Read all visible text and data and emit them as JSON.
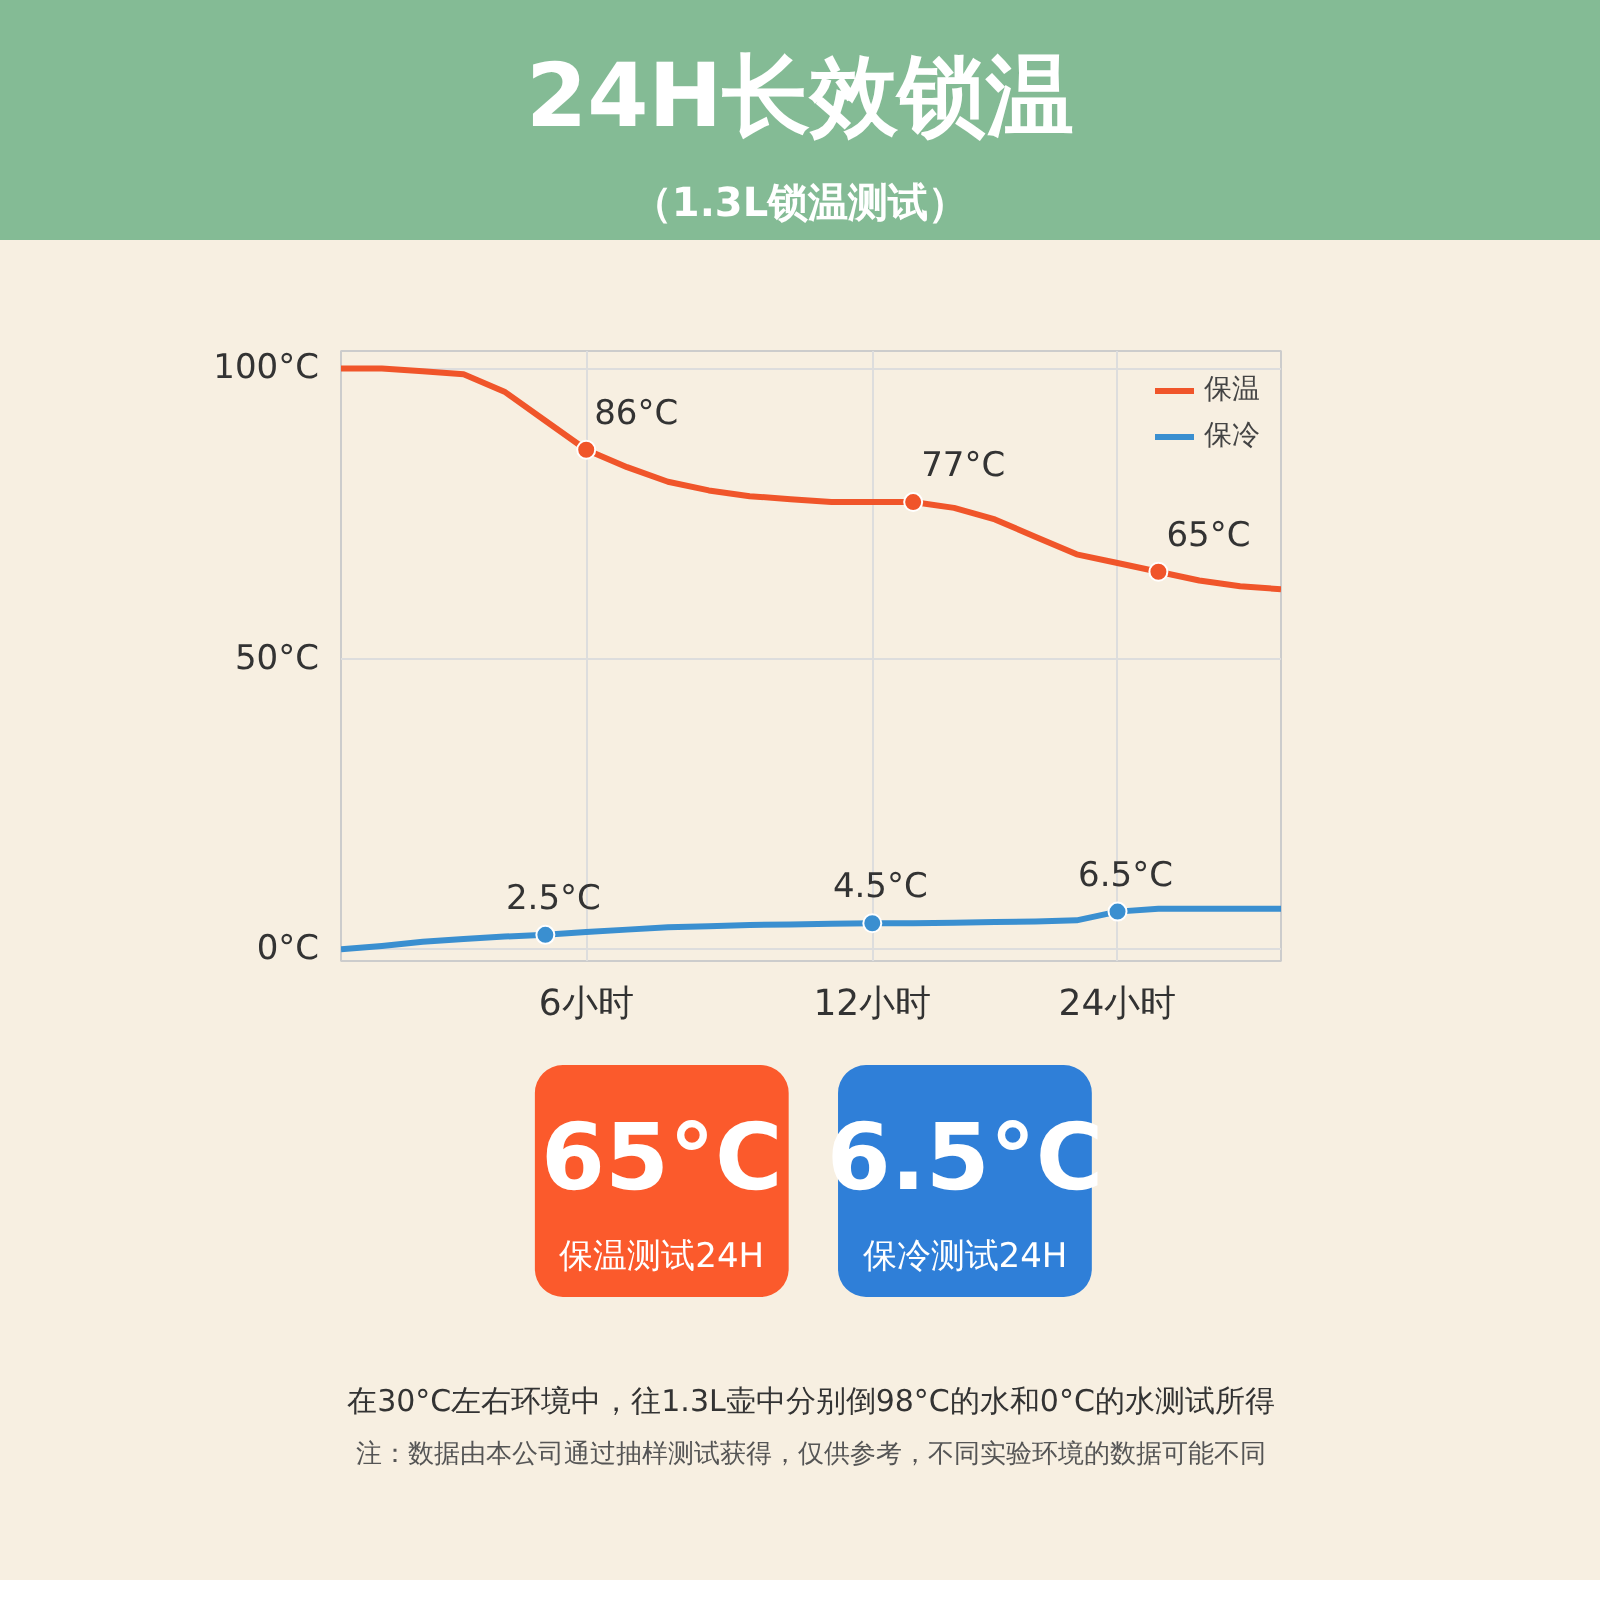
{
  "chart_data": [
    {
      "type": "line",
      "title": "24H长效锁温",
      "subtitle": "（1.3L锁温测试）",
      "categories": [
        null,
        null,
        null,
        null,
        null,
        null,
        "6小时",
        null,
        null,
        null,
        null,
        null,
        null,
        "12小时",
        null,
        null,
        null,
        null,
        null,
        "24小时",
        null,
        null,
        null,
        null
      ],
      "ylim": [
        -2,
        103
      ],
      "yticks": [
        {
          "value": 0,
          "label": "0°C"
        },
        {
          "value": 50,
          "label": "50°C"
        },
        {
          "value": 100,
          "label": "100°C"
        }
      ],
      "grid": true,
      "legend": "top right",
      "line_style": "solid",
      "series": [
        {
          "name": "保温",
          "color": "#f0552a",
          "values": [
            100,
            100,
            99.5,
            99,
            96,
            91,
            86,
            83,
            80.5,
            79,
            78,
            77.5,
            77,
            77,
            77,
            76,
            74,
            71,
            68,
            66.5,
            65,
            63.5,
            62.5,
            62
          ],
          "value_labels": [
            null,
            null,
            null,
            null,
            null,
            null,
            "86°C",
            null,
            null,
            null,
            null,
            null,
            null,
            null,
            "77°C",
            null,
            null,
            null,
            null,
            null,
            "65°C",
            null,
            null,
            null
          ]
        },
        {
          "name": "保冷",
          "color": "#3a8fd0",
          "values": [
            0,
            0.6,
            1.3,
            1.8,
            2.2,
            2.5,
            3,
            3.4,
            3.8,
            4,
            4.2,
            4.3,
            4.4,
            4.5,
            4.5,
            4.6,
            4.7,
            4.8,
            5,
            6.5,
            7,
            7,
            7,
            7
          ],
          "value_labels": [
            null,
            null,
            null,
            null,
            null,
            "2.5°C",
            null,
            null,
            null,
            null,
            null,
            null,
            null,
            "4.5°C",
            null,
            null,
            null,
            null,
            null,
            "6.5°C",
            null,
            null,
            null,
            null
          ]
        }
      ]
    },
    {
      "type": "other",
      "colors": [
        "#fb5a2c",
        "#2f7fd8"
      ],
      "annotations": [
        "65°C",
        "保温测试24H",
        "6.5°C",
        "保冷测试24H",
        "在30°C左右环境中，往1.3L壶中分别倒98°C的水和0°C的水测试所得",
        "注：数据由本公司通过抽样测试获得，仅供参考，不同实验环境的数据可能不同"
      ]
    }
  ]
}
